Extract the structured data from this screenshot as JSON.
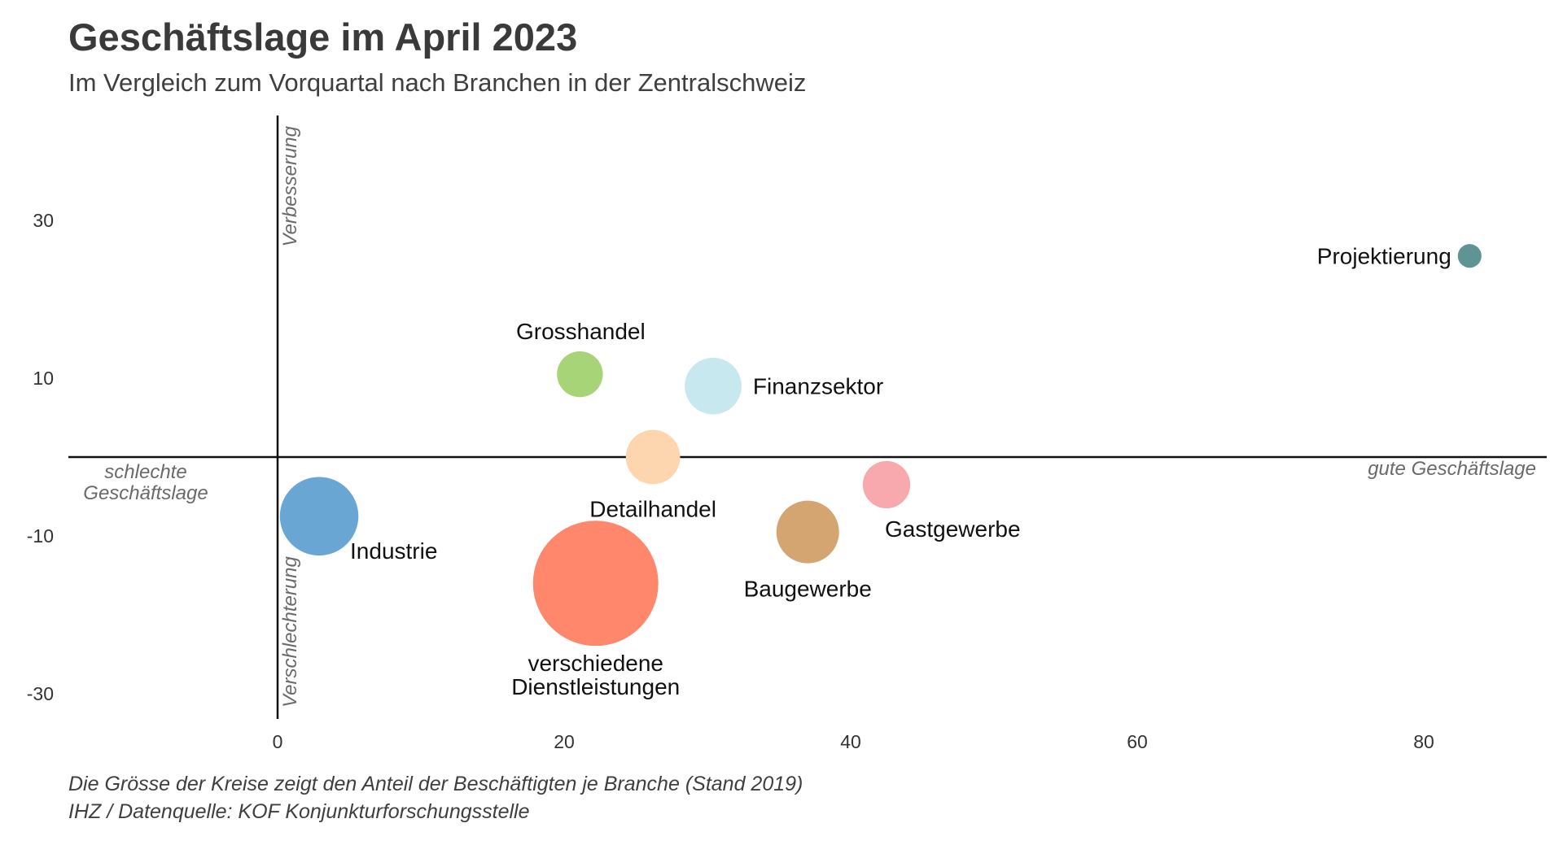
{
  "header": {
    "title": "Geschäftslage im April 2023",
    "subtitle": "Im Vergleich zum Vorquartal nach Branchen in der Zentralschweiz"
  },
  "footer": {
    "note": "Die Grösse der Kreise zeigt den Anteil der Beschäftigten je Branche (Stand 2019)",
    "source": "IHZ / Datenquelle: KOF Konjunkturforschungsstelle"
  },
  "chart_data": {
    "type": "scatter",
    "title": "Geschäftslage im April 2023",
    "subtitle": "Im Vergleich zum Vorquartal nach Branchen in der Zentralschweiz",
    "xlabel": "",
    "ylabel": "",
    "xlim": [
      -15,
      89
    ],
    "ylim": [
      -33,
      43
    ],
    "xticks": [
      0,
      20,
      40,
      60,
      80
    ],
    "yticks": [
      30,
      10,
      -10,
      -30
    ],
    "grid": false,
    "quadrant_labels": {
      "top": "Verbesserung",
      "bottom": "Verschlechterung",
      "left": [
        "schlechte",
        "Geschäftslage"
      ],
      "right": "gute Geschäftslage"
    },
    "points": [
      {
        "name": "Projektierung",
        "x": 83.2,
        "y": 25.5,
        "size": 0.4,
        "color": "#5e9494",
        "label_lines": [
          "Projektierung"
        ]
      },
      {
        "name": "Grosshandel",
        "x": 21.1,
        "y": 10.5,
        "size": 1.5,
        "color": "#a8d478",
        "label_lines": [
          "Grosshandel"
        ]
      },
      {
        "name": "Finanzsektor",
        "x": 30.4,
        "y": 9.0,
        "size": 2.3,
        "color": "#c8e8ef",
        "label_lines": [
          "Finanzsektor"
        ]
      },
      {
        "name": "Detailhandel",
        "x": 26.2,
        "y": 0.0,
        "size": 2.1,
        "color": "#fdd6b0",
        "label_lines": [
          "Detailhandel"
        ]
      },
      {
        "name": "Gastgewerbe",
        "x": 42.5,
        "y": -3.5,
        "size": 1.6,
        "color": "#f8a9ad",
        "label_lines": [
          "Gastgewerbe"
        ]
      },
      {
        "name": "Industrie",
        "x": 2.9,
        "y": -7.5,
        "size": 4.4,
        "color": "#6aa6d4",
        "label_lines": [
          "Industrie"
        ]
      },
      {
        "name": "Baugewerbe",
        "x": 37.0,
        "y": -9.5,
        "size": 2.8,
        "color": "#d4a571",
        "label_lines": [
          "Baugewerbe"
        ]
      },
      {
        "name": "verschiedene Dienstleistungen",
        "x": 22.2,
        "y": -16.0,
        "size": 11.2,
        "color": "#ff876c",
        "label_lines": [
          "verschiedene",
          "Dienstleistungen"
        ]
      }
    ]
  }
}
